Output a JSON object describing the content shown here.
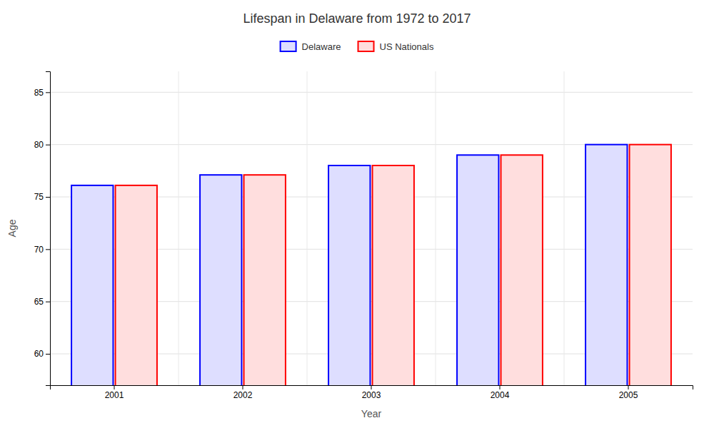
{
  "chart_data": {
    "type": "bar",
    "title": "Lifespan in Delaware from 1972 to 2017",
    "xlabel": "Year",
    "ylabel": "Age",
    "categories": [
      "2001",
      "2002",
      "2003",
      "2004",
      "2005"
    ],
    "series": [
      {
        "name": "Delaware",
        "color": "#0000ff",
        "values": [
          76.1,
          77.1,
          78.0,
          79.0,
          80.0
        ]
      },
      {
        "name": "US Nationals",
        "color": "#ff0000",
        "values": [
          76.1,
          77.1,
          78.0,
          79.0,
          80.0
        ]
      }
    ],
    "ylim": [
      57,
      87
    ],
    "yticks": [
      60,
      65,
      70,
      75,
      80,
      85
    ],
    "grid": true,
    "legend": "top"
  }
}
